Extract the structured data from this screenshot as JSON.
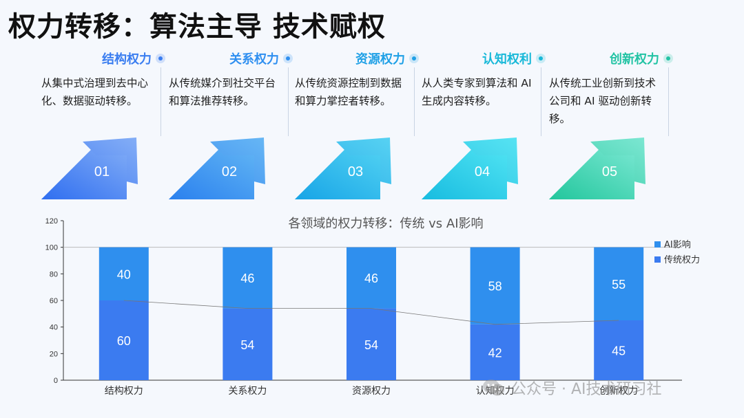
{
  "page": {
    "title": "权力转移：算法主导 技术赋权"
  },
  "steps": [
    {
      "label": "结构权力",
      "desc": "从集中式治理到去中心化、数据驱动转移。",
      "num": "01",
      "color_text": "#3a7df0",
      "grad": [
        "#2f6ef0",
        "#7eaaf6"
      ]
    },
    {
      "label": "关系权力",
      "desc": "从传统媒介到社交平台和算法推荐转移。",
      "num": "02",
      "color_text": "#2f8ff0",
      "grad": [
        "#2a80ee",
        "#5fb3f4"
      ]
    },
    {
      "label": "资源权力",
      "desc": "从传统资源控制到数据和算力掌控者转移。",
      "num": "03",
      "color_text": "#1fa0e6",
      "grad": [
        "#17a4e6",
        "#4fd0f2"
      ]
    },
    {
      "label": "认知权利",
      "desc": "从人类专家到算法和 AI 生成内容转移。",
      "num": "04",
      "color_text": "#18b8d8",
      "grad": [
        "#18bce0",
        "#4ee2f2"
      ]
    },
    {
      "label": "创新权力",
      "desc": "从传统工业创新到技术公司和 AI 驱动创新转移。",
      "num": "05",
      "color_text": "#22c3a4",
      "grad": [
        "#22c69c",
        "#76e6d0"
      ]
    }
  ],
  "chart_data": {
    "type": "bar",
    "stacked": true,
    "title": "各领域的权力转移：传统 vs AI影响",
    "categories": [
      "结构权力",
      "关系权力",
      "资源权力",
      "认知权力",
      "创新权力"
    ],
    "series": [
      {
        "name": "传统权力",
        "values": [
          60,
          54,
          54,
          42,
          45
        ],
        "color": "#3b7bf0"
      },
      {
        "name": "AI影响",
        "values": [
          40,
          46,
          46,
          58,
          55
        ],
        "color": "#2f8fee"
      }
    ],
    "ylim": [
      0,
      120
    ],
    "yticks": [
      "0",
      "20",
      "40",
      "60",
      "80",
      "100",
      "120"
    ],
    "legend_position": "right",
    "grid": false,
    "trend_line": true
  },
  "watermark": {
    "text": "公众号 · AI技术研习社"
  }
}
